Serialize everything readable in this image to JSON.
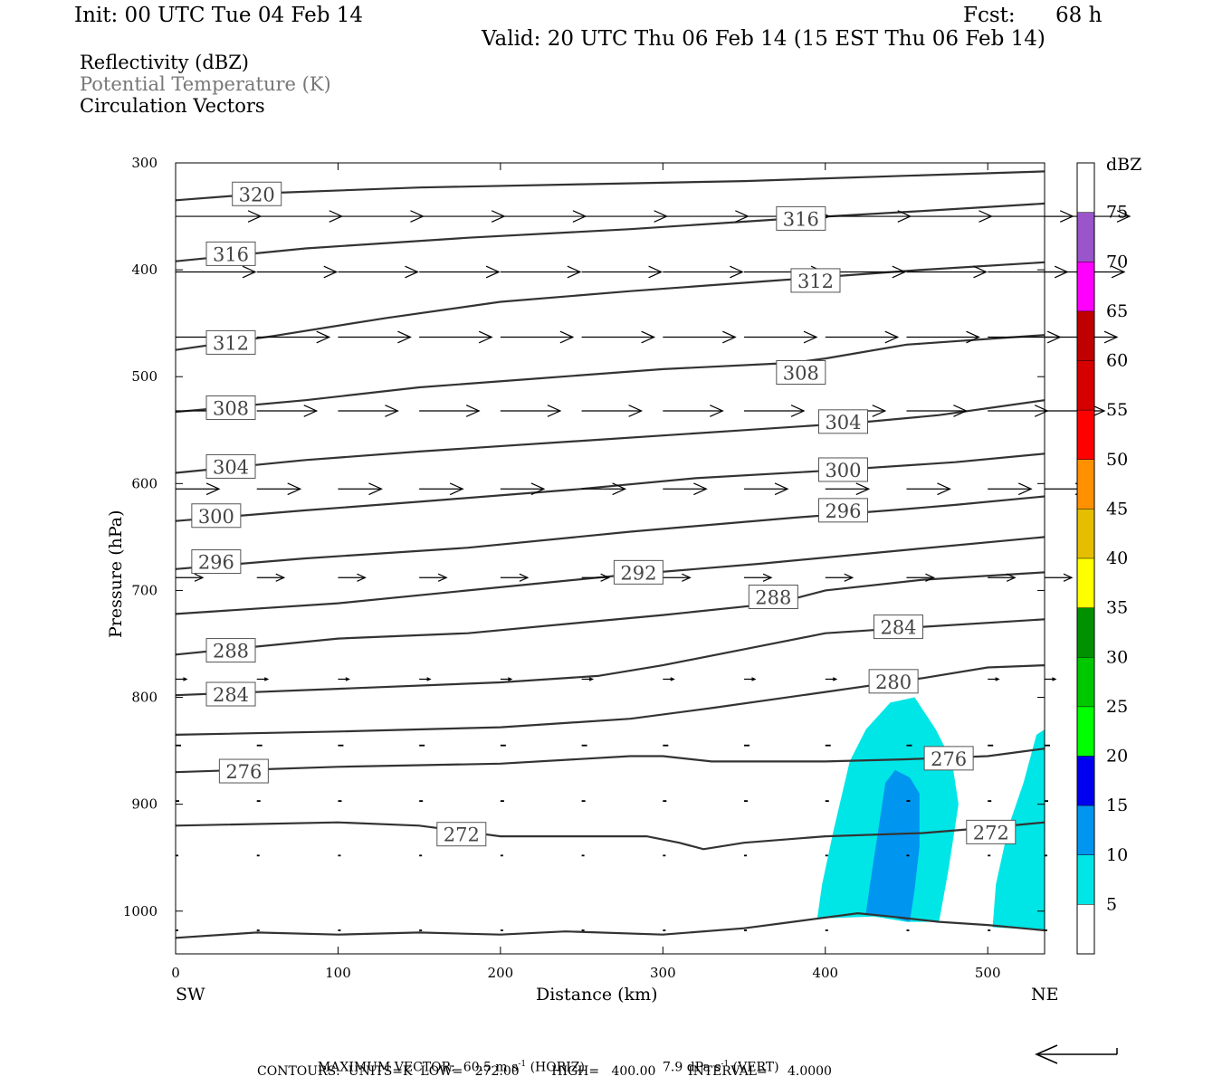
{
  "header": {
    "init": "Init: 00 UTC Tue 04 Feb 14",
    "fcst_label": "Fcst:",
    "fcst_value": "68 h",
    "valid": "Valid: 20 UTC Thu 06 Feb 14 (15 EST Thu 06 Feb 14)"
  },
  "fields": {
    "reflectivity": "Reflectivity (dBZ)",
    "theta": "Potential Temperature (K)",
    "vectors": "Circulation Vectors"
  },
  "footer": {
    "max_vector_prefix": "MAXIMUM VECTOR:  60.5 m s",
    "max_vector_horiz": "(HORIZ)",
    "max_vector_vert_prefix": "7.9 dPa s",
    "max_vector_vert": "(VERT)",
    "contours": "CONTOURS:  UNITS=K  LOW=   272.00        HIGH=   400.00        INTERVAL=     4.0000"
  },
  "chart_data": {
    "type": "cross-section",
    "xlabel": "Distance (km)",
    "ylabel": "Pressure (hPa)",
    "x_left_label": "SW",
    "x_right_label": "NE",
    "xlim": [
      0,
      535
    ],
    "ylim": [
      1040,
      300
    ],
    "x_ticks": [
      0,
      100,
      200,
      300,
      400,
      500
    ],
    "y_ticks": [
      300,
      400,
      500,
      600,
      700,
      800,
      900,
      1000
    ],
    "colorbar": {
      "title": "dBZ",
      "levels": [
        5,
        10,
        15,
        20,
        25,
        30,
        35,
        40,
        45,
        50,
        55,
        60,
        65,
        70,
        75
      ],
      "colors": [
        "#ffffff",
        "#00e6e6",
        "#0096f0",
        "#0000f0",
        "#00ff00",
        "#00c800",
        "#009000",
        "#ffff00",
        "#e6be00",
        "#ff9000",
        "#ff0000",
        "#d60000",
        "#c00000",
        "#ff00ff",
        "#9955c9",
        "#ffffff"
      ]
    },
    "reflectivity_regions": [
      {
        "level": 5,
        "color": "#00e6e6",
        "points": [
          [
            395,
            1007
          ],
          [
            398,
            975
          ],
          [
            405,
            925
          ],
          [
            415,
            860
          ],
          [
            425,
            830
          ],
          [
            440,
            805
          ],
          [
            455,
            800
          ],
          [
            468,
            830
          ],
          [
            478,
            860
          ],
          [
            482,
            900
          ],
          [
            476,
            960
          ],
          [
            470,
            1010
          ],
          [
            450,
            1010
          ],
          [
            430,
            1005
          ]
        ]
      },
      {
        "level": 5,
        "color": "#00e6e6",
        "points": [
          [
            503,
            1015
          ],
          [
            505,
            975
          ],
          [
            513,
            920
          ],
          [
            522,
            880
          ],
          [
            530,
            835
          ],
          [
            535,
            830
          ],
          [
            535,
            1018
          ]
        ]
      },
      {
        "level": 10,
        "color": "#0096f0",
        "points": [
          [
            425,
            1002
          ],
          [
            428,
            970
          ],
          [
            433,
            920
          ],
          [
            437,
            880
          ],
          [
            443,
            868
          ],
          [
            452,
            875
          ],
          [
            458,
            890
          ],
          [
            458,
            940
          ],
          [
            455,
            980
          ],
          [
            452,
            1010
          ],
          [
            440,
            1005
          ]
        ]
      }
    ],
    "theta_contours": [
      {
        "value": 320,
        "points": [
          [
            0,
            335
          ],
          [
            60,
            328
          ],
          [
            150,
            323
          ],
          [
            250,
            320
          ],
          [
            350,
            317
          ],
          [
            450,
            312
          ],
          [
            535,
            308
          ]
        ]
      },
      {
        "value": 316,
        "points": [
          [
            0,
            392
          ],
          [
            80,
            380
          ],
          [
            180,
            370
          ],
          [
            280,
            362
          ],
          [
            380,
            352
          ],
          [
            460,
            345
          ],
          [
            535,
            338
          ]
        ]
      },
      {
        "value": 312,
        "points": [
          [
            0,
            475
          ],
          [
            60,
            462
          ],
          [
            130,
            445
          ],
          [
            200,
            430
          ],
          [
            280,
            420
          ],
          [
            370,
            410
          ],
          [
            460,
            400
          ],
          [
            535,
            393
          ]
        ]
      },
      {
        "value": 308,
        "points": [
          [
            0,
            533
          ],
          [
            80,
            522
          ],
          [
            150,
            510
          ],
          [
            220,
            502
          ],
          [
            300,
            493
          ],
          [
            380,
            487
          ],
          [
            400,
            483
          ],
          [
            450,
            470
          ],
          [
            535,
            461
          ]
        ]
      },
      {
        "value": 304,
        "points": [
          [
            0,
            590
          ],
          [
            80,
            578
          ],
          [
            150,
            570
          ],
          [
            250,
            560
          ],
          [
            350,
            550
          ],
          [
            420,
            543
          ],
          [
            470,
            536
          ],
          [
            535,
            522
          ]
        ]
      },
      {
        "value": 300,
        "points": [
          [
            0,
            635
          ],
          [
            80,
            625
          ],
          [
            150,
            617
          ],
          [
            250,
            605
          ],
          [
            320,
            595
          ],
          [
            400,
            588
          ],
          [
            480,
            580
          ],
          [
            535,
            572
          ]
        ]
      },
      {
        "value": 296,
        "points": [
          [
            0,
            680
          ],
          [
            80,
            670
          ],
          [
            180,
            660
          ],
          [
            280,
            645
          ],
          [
            380,
            632
          ],
          [
            440,
            625
          ],
          [
            480,
            620
          ],
          [
            535,
            612
          ]
        ]
      },
      {
        "value": 292,
        "points": [
          [
            0,
            722
          ],
          [
            100,
            712
          ],
          [
            180,
            700
          ],
          [
            280,
            685
          ],
          [
            360,
            675
          ],
          [
            450,
            662
          ],
          [
            535,
            650
          ]
        ]
      },
      {
        "value": 288,
        "points": [
          [
            0,
            760
          ],
          [
            100,
            745
          ],
          [
            180,
            740
          ],
          [
            250,
            730
          ],
          [
            300,
            723
          ],
          [
            370,
            712
          ],
          [
            400,
            700
          ],
          [
            460,
            690
          ],
          [
            535,
            683
          ]
        ]
      },
      {
        "value": 284,
        "points": [
          [
            0,
            798
          ],
          [
            100,
            792
          ],
          [
            200,
            786
          ],
          [
            260,
            780
          ],
          [
            300,
            770
          ],
          [
            350,
            755
          ],
          [
            400,
            740
          ],
          [
            450,
            735
          ],
          [
            535,
            727
          ]
        ]
      },
      {
        "value": 280,
        "points": [
          [
            0,
            835
          ],
          [
            100,
            832
          ],
          [
            200,
            828
          ],
          [
            280,
            820
          ],
          [
            330,
            810
          ],
          [
            400,
            795
          ],
          [
            460,
            782
          ],
          [
            500,
            772
          ],
          [
            535,
            770
          ]
        ]
      },
      {
        "value": 276,
        "points": [
          [
            0,
            870
          ],
          [
            100,
            865
          ],
          [
            200,
            862
          ],
          [
            280,
            855
          ],
          [
            300,
            855
          ],
          [
            330,
            860
          ],
          [
            400,
            860
          ],
          [
            450,
            858
          ],
          [
            500,
            855
          ],
          [
            535,
            848
          ]
        ]
      },
      {
        "value": 272,
        "points": [
          [
            0,
            920
          ],
          [
            100,
            917
          ],
          [
            150,
            920
          ],
          [
            200,
            930
          ],
          [
            290,
            930
          ],
          [
            310,
            936
          ],
          [
            325,
            942
          ],
          [
            350,
            936
          ],
          [
            400,
            930
          ],
          [
            460,
            927
          ],
          [
            500,
            922
          ],
          [
            535,
            917
          ]
        ]
      },
      {
        "value": null,
        "points": [
          [
            0,
            1025
          ],
          [
            50,
            1020
          ],
          [
            100,
            1022
          ],
          [
            150,
            1020
          ],
          [
            200,
            1022
          ],
          [
            240,
            1019
          ],
          [
            300,
            1022
          ],
          [
            350,
            1016
          ],
          [
            380,
            1010
          ],
          [
            420,
            1002
          ],
          [
            440,
            1005
          ],
          [
            470,
            1010
          ],
          [
            500,
            1013
          ],
          [
            535,
            1018
          ]
        ]
      }
    ],
    "contour_labels": [
      {
        "text": "320",
        "x": 50,
        "p": 329
      },
      {
        "text": "316",
        "x": 34,
        "p": 385
      },
      {
        "text": "316",
        "x": 385,
        "p": 352
      },
      {
        "text": "312",
        "x": 34,
        "p": 468
      },
      {
        "text": "312",
        "x": 394,
        "p": 410
      },
      {
        "text": "308",
        "x": 34,
        "p": 529
      },
      {
        "text": "308",
        "x": 385,
        "p": 496
      },
      {
        "text": "304",
        "x": 34,
        "p": 584
      },
      {
        "text": "304",
        "x": 411,
        "p": 542
      },
      {
        "text": "300",
        "x": 25,
        "p": 630
      },
      {
        "text": "300",
        "x": 411,
        "p": 587
      },
      {
        "text": "296",
        "x": 25,
        "p": 673
      },
      {
        "text": "296",
        "x": 411,
        "p": 625
      },
      {
        "text": "292",
        "x": 285,
        "p": 683
      },
      {
        "text": "288",
        "x": 34,
        "p": 756
      },
      {
        "text": "288",
        "x": 368,
        "p": 706
      },
      {
        "text": "284",
        "x": 34,
        "p": 797
      },
      {
        "text": "284",
        "x": 445,
        "p": 734
      },
      {
        "text": "280",
        "x": 442,
        "p": 785
      },
      {
        "text": "276",
        "x": 42,
        "p": 869
      },
      {
        "text": "276",
        "x": 476,
        "p": 857
      },
      {
        "text": "272",
        "x": 176,
        "p": 928
      },
      {
        "text": "272",
        "x": 502,
        "p": 926
      }
    ],
    "vector_levels": [
      {
        "p": 350,
        "dx": 47,
        "dy": 0
      },
      {
        "p": 402,
        "dx": 44,
        "dy": 0
      },
      {
        "p": 463,
        "dx": 40,
        "dy": 0
      },
      {
        "p": 532,
        "dx": 33,
        "dy": 0
      },
      {
        "p": 605,
        "dx": 24,
        "dy": 0
      },
      {
        "p": 688,
        "dx": 15,
        "dy": 0
      },
      {
        "p": 783,
        "dx": 6,
        "dy": 0
      },
      {
        "p": 845,
        "dx": 3,
        "dy": 0
      },
      {
        "p": 897,
        "dx": 2,
        "dy": 0
      },
      {
        "p": 948,
        "dx": 1,
        "dy": 0
      },
      {
        "p": 1018,
        "dx": 1,
        "dy": 0
      }
    ],
    "vector_x": [
      0,
      50,
      100,
      150,
      200,
      250,
      300,
      350,
      400,
      450,
      500,
      535
    ]
  }
}
